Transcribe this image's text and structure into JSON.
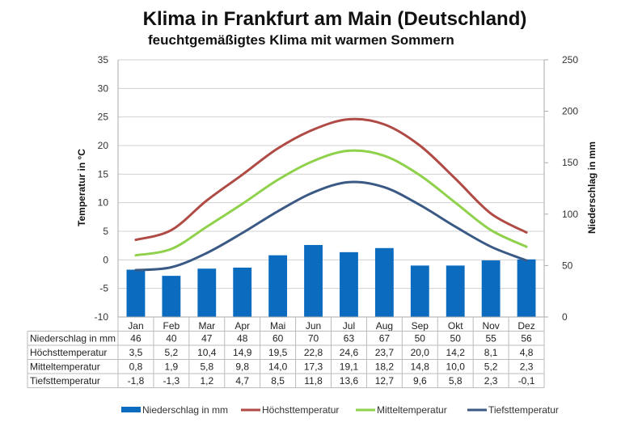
{
  "header": {
    "title": "Klima in Frankfurt am Main (Deutschland)",
    "subtitle": "feuchtgemäßigtes Klima mit warmen Sommern"
  },
  "chart_data": {
    "type": "bar",
    "title": "Klima in Frankfurt am Main (Deutschland)",
    "subtitle": "feuchtgemäßigtes Klima mit warmen Sommern",
    "categories": [
      "Jan",
      "Feb",
      "Mar",
      "Apr",
      "Mai",
      "Jun",
      "Jul",
      "Aug",
      "Sep",
      "Okt",
      "Nov",
      "Dez"
    ],
    "ylabel": "Temperatur in °C",
    "y2label": "Niederschlag in mm",
    "ylim": [
      -10,
      35
    ],
    "yticks": [
      "35",
      "30",
      "25",
      "20",
      "15",
      "10",
      "5",
      "0",
      "-5",
      "-10"
    ],
    "y2lim": [
      0,
      250
    ],
    "y2ticks": [
      "250",
      "200",
      "150",
      "100",
      "50",
      "0"
    ],
    "grid": true,
    "legend_position": "bottom",
    "series": [
      {
        "name": "Niederschlag in mm",
        "type": "bar",
        "axis": "right",
        "color": "#0b6cbf",
        "values": [
          46,
          40,
          47,
          48,
          60,
          70,
          63,
          67,
          50,
          50,
          55,
          56
        ],
        "labels": [
          "46",
          "40",
          "47",
          "48",
          "60",
          "70",
          "63",
          "67",
          "50",
          "50",
          "55",
          "56"
        ]
      },
      {
        "name": "Höchsttemperatur",
        "type": "line",
        "axis": "left",
        "color": "#b04a45",
        "values": [
          3.5,
          5.2,
          10.4,
          14.9,
          19.5,
          22.8,
          24.6,
          23.7,
          20.0,
          14.2,
          8.1,
          4.8
        ],
        "labels": [
          "3,5",
          "5,2",
          "10,4",
          "14,9",
          "19,5",
          "22,8",
          "24,6",
          "23,7",
          "20,0",
          "14,2",
          "8,1",
          "4,8"
        ]
      },
      {
        "name": "Mitteltemperatur",
        "type": "line",
        "axis": "left",
        "color": "#8fd14a",
        "values": [
          0.8,
          1.9,
          5.8,
          9.8,
          14.0,
          17.3,
          19.1,
          18.2,
          14.8,
          10.0,
          5.2,
          2.3
        ],
        "labels": [
          "0,8",
          "1,9",
          "5,8",
          "9,8",
          "14,0",
          "17,3",
          "19,1",
          "18,2",
          "14,8",
          "10,0",
          "5,2",
          "2,3"
        ]
      },
      {
        "name": "Tiefsttemperatur",
        "type": "line",
        "axis": "left",
        "color": "#3a5a85",
        "values": [
          -1.8,
          -1.3,
          1.2,
          4.7,
          8.5,
          11.8,
          13.6,
          12.7,
          9.6,
          5.8,
          2.3,
          -0.1
        ],
        "labels": [
          "-1,8",
          "-1,3",
          "1,2",
          "4,7",
          "8,5",
          "11,8",
          "13,6",
          "12,7",
          "9,6",
          "5,8",
          "2,3",
          "-0,1"
        ]
      }
    ]
  }
}
